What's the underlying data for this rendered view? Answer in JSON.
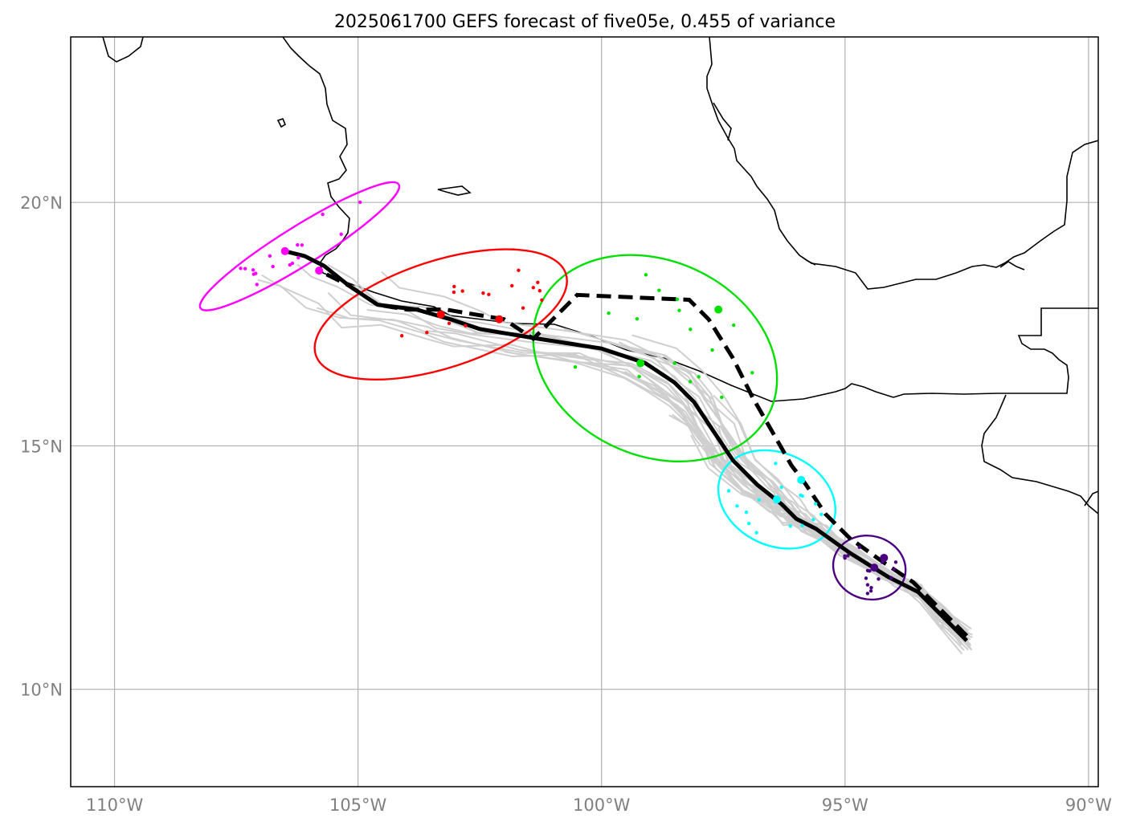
{
  "title": "2025061700 GEFS forecast of five05e, 0.455 of variance",
  "lon_ticks": [
    {
      "value": -110,
      "label": "110°W"
    },
    {
      "value": -105,
      "label": "105°W"
    },
    {
      "value": -100,
      "label": "100°W"
    },
    {
      "value": -95,
      "label": "95°W"
    },
    {
      "value": -90,
      "label": "90°W"
    }
  ],
  "lat_ticks": [
    {
      "value": 10,
      "label": "10°N"
    },
    {
      "value": 15,
      "label": "15°N"
    },
    {
      "value": 20,
      "label": "20°N"
    }
  ],
  "extent": {
    "lon": [
      -110.9,
      -89.8
    ],
    "lat": [
      8.0,
      23.4
    ]
  },
  "colors": {
    "grid": "#b0b0b0",
    "coast": "#000000",
    "member_track": "#cfcfcf",
    "mean_track": "#000000",
    "time_colors": [
      "#4b0082",
      "#00ffff",
      "#00e000",
      "#ff0000",
      "#ff00ff"
    ]
  },
  "chart_data": {
    "type": "map",
    "ensemble_mean_track": [
      [
        -92.5,
        11.0
      ],
      [
        -93.0,
        11.5
      ],
      [
        -93.5,
        12.0
      ],
      [
        -94.1,
        12.3
      ],
      [
        -94.9,
        12.8
      ],
      [
        -95.6,
        13.3
      ],
      [
        -96.0,
        13.5
      ],
      [
        -96.3,
        13.8
      ],
      [
        -96.8,
        14.2
      ],
      [
        -97.3,
        14.7
      ],
      [
        -97.7,
        15.3
      ],
      [
        -98.1,
        15.9
      ],
      [
        -98.5,
        16.3
      ],
      [
        -99.1,
        16.7
      ],
      [
        -100.0,
        17.0
      ],
      [
        -101.3,
        17.2
      ],
      [
        -102.5,
        17.4
      ],
      [
        -103.1,
        17.6
      ],
      [
        -103.8,
        17.8
      ],
      [
        -104.6,
        17.9
      ],
      [
        -105.2,
        18.3
      ],
      [
        -105.7,
        18.7
      ],
      [
        -106.1,
        18.9
      ],
      [
        -106.5,
        19.0
      ]
    ],
    "deterministic_track": [
      [
        -92.5,
        11.1
      ],
      [
        -93.0,
        11.6
      ],
      [
        -93.6,
        12.2
      ],
      [
        -94.2,
        12.6
      ],
      [
        -94.9,
        13.1
      ],
      [
        -95.4,
        13.6
      ],
      [
        -95.8,
        14.2
      ],
      [
        -96.1,
        14.6
      ],
      [
        -96.5,
        15.3
      ],
      [
        -96.9,
        16.0
      ],
      [
        -97.3,
        16.8
      ],
      [
        -97.8,
        17.6
      ],
      [
        -98.2,
        18.0
      ],
      [
        -100.5,
        18.1
      ],
      [
        -101.4,
        17.2
      ],
      [
        -102.0,
        17.6
      ],
      [
        -103.2,
        17.8
      ],
      [
        -104.0,
        17.8
      ],
      [
        -104.6,
        17.9
      ],
      [
        -105.2,
        18.3
      ],
      [
        -105.8,
        18.6
      ]
    ],
    "time_centers": [
      {
        "color_index": 0,
        "mean": [
          -94.4,
          12.5
        ],
        "det": [
          -94.2,
          12.7
        ],
        "ellipse": {
          "cx": -94.5,
          "cy": 12.5,
          "rx": 0.75,
          "ry": 0.65,
          "angle": 15
        }
      },
      {
        "color_index": 1,
        "mean": [
          -96.4,
          13.9
        ],
        "det": [
          -95.9,
          14.3
        ],
        "ellipse": {
          "cx": -96.4,
          "cy": 13.9,
          "rx": 1.25,
          "ry": 0.95,
          "angle": 25
        }
      },
      {
        "color_index": 2,
        "mean": [
          -99.2,
          16.7
        ],
        "det": [
          -97.6,
          17.8
        ],
        "ellipse": {
          "cx": -98.9,
          "cy": 16.8,
          "rx": 2.6,
          "ry": 2.0,
          "angle": 25
        }
      },
      {
        "color_index": 3,
        "mean": [
          -103.3,
          17.7
        ],
        "det": [
          -102.1,
          17.6
        ],
        "ellipse": {
          "cx": -103.3,
          "cy": 17.7,
          "rx": 2.7,
          "ry": 1.1,
          "angle": -18
        }
      },
      {
        "color_index": 4,
        "mean": [
          -106.5,
          19.0
        ],
        "det": [
          -105.8,
          18.6
        ],
        "ellipse": {
          "cx": -106.2,
          "cy": 19.1,
          "rx": 2.4,
          "ry": 0.4,
          "angle": -32
        }
      }
    ]
  }
}
